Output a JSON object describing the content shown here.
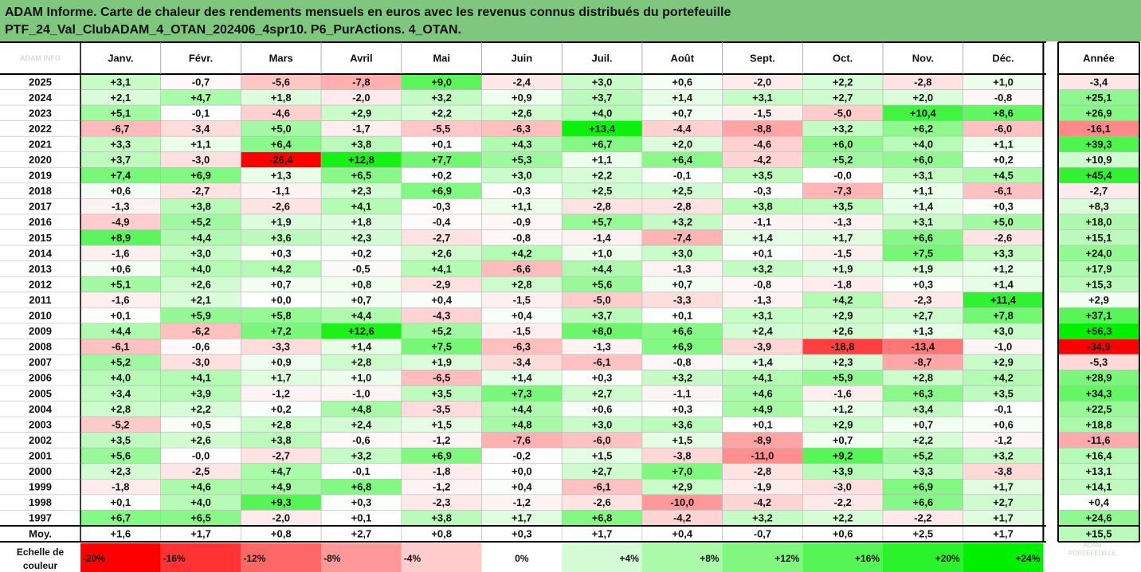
{
  "title": {
    "line1": "ADAM Informe. Carte de chaleur des rendements mensuels en euros avec les revenus connus distribués du portefeuille",
    "line2": "PTF_24_Val_ClubADAM_4_OTAN_202406_4spr10. P6_PurActions. 4_OTAN."
  },
  "corner_label": "ADAM INFO",
  "watermark": {
    "line1": "ADAM",
    "line2": "PORTEFEUILLE"
  },
  "colors": {
    "title_bg": "#7fc77f",
    "strong_negative": "#ff0000",
    "strong_positive": "#00f000"
  },
  "chart_data": {
    "type": "heatmap",
    "columns": [
      "Janv.",
      "Févr.",
      "Mars",
      "Avril",
      "Mai",
      "Juin",
      "Juil.",
      "Août",
      "Sept.",
      "Oct.",
      "Nov.",
      "Déc."
    ],
    "annual_label": "Année",
    "rows": [
      {
        "year": "2025",
        "values": [
          "+3,1",
          "-0,7",
          "-5,6",
          "-7,8",
          "+9,0",
          "-2,4",
          "+3,0",
          "+0,6",
          "-2,0",
          "+2,2",
          "-2,8",
          "+1,0"
        ],
        "annual": "-3,4"
      },
      {
        "year": "2024",
        "values": [
          "+2,1",
          "+4,7",
          "+1,8",
          "-2,0",
          "+3,2",
          "+0,9",
          "+3,7",
          "+1,4",
          "+3,1",
          "+2,7",
          "+2,0",
          "-0,8"
        ],
        "annual": "+25,1"
      },
      {
        "year": "2023",
        "values": [
          "+5,1",
          "-0,1",
          "-4,6",
          "+2,9",
          "+2,2",
          "+2,6",
          "+4,0",
          "+0,7",
          "-1,5",
          "-5,0",
          "+10,4",
          "+8,6"
        ],
        "annual": "+26,9"
      },
      {
        "year": "2022",
        "values": [
          "-6,7",
          "-3,4",
          "+5,0",
          "-1,7",
          "-5,5",
          "-6,3",
          "+13,4",
          "-4,4",
          "-8,8",
          "+3,2",
          "+6,2",
          "-6,0"
        ],
        "annual": "-16,1"
      },
      {
        "year": "2021",
        "values": [
          "+3,3",
          "+1,1",
          "+6,4",
          "+3,8",
          "+0,1",
          "+4,3",
          "+6,7",
          "+2,0",
          "-4,6",
          "+6,0",
          "+4,0",
          "+1,1"
        ],
        "annual": "+39,3"
      },
      {
        "year": "2020",
        "values": [
          "+3,7",
          "-3,0",
          "-26,4",
          "+12,8",
          "+7,7",
          "+5,3",
          "+1,1",
          "+6,4",
          "-4,2",
          "+5,2",
          "+6,0",
          "+0,2"
        ],
        "annual": "+10,9"
      },
      {
        "year": "2019",
        "values": [
          "+7,4",
          "+6,9",
          "+1,3",
          "+6,5",
          "+0,2",
          "+3,0",
          "+2,2",
          "-0,1",
          "+3,5",
          "-0,0",
          "+3,1",
          "+4,5"
        ],
        "annual": "+45,4"
      },
      {
        "year": "2018",
        "values": [
          "+0,6",
          "-2,7",
          "-1,1",
          "+2,3",
          "+6,9",
          "-0,3",
          "+2,5",
          "+2,5",
          "-0,3",
          "-7,3",
          "+1,1",
          "-6,1"
        ],
        "annual": "-2,7"
      },
      {
        "year": "2017",
        "values": [
          "-1,3",
          "+3,8",
          "-2,6",
          "+4,1",
          "-0,3",
          "+1,1",
          "-2,8",
          "-2,8",
          "+3,8",
          "+3,5",
          "+1,4",
          "+0,3"
        ],
        "annual": "+8,3"
      },
      {
        "year": "2016",
        "values": [
          "-4,9",
          "+5,2",
          "+1,9",
          "+1,8",
          "-0,4",
          "-0,9",
          "+5,7",
          "+3,2",
          "-1,1",
          "-1,3",
          "+3,1",
          "+5,0"
        ],
        "annual": "+18,0"
      },
      {
        "year": "2015",
        "values": [
          "+8,9",
          "+4,4",
          "+3,6",
          "+2,3",
          "-2,7",
          "-0,8",
          "-1,4",
          "-7,4",
          "+1,4",
          "+1,7",
          "+6,6",
          "-2,6"
        ],
        "annual": "+15,1"
      },
      {
        "year": "2014",
        "values": [
          "-1,6",
          "+3,0",
          "+0,3",
          "+0,2",
          "+2,6",
          "+4,2",
          "+1,0",
          "+3,0",
          "+0,1",
          "-1,5",
          "+7,5",
          "+3,3"
        ],
        "annual": "+24,0"
      },
      {
        "year": "2013",
        "values": [
          "+0,6",
          "+4,0",
          "+4,2",
          "-0,5",
          "+4,1",
          "-6,6",
          "+4,4",
          "-1,3",
          "+3,2",
          "+1,9",
          "+1,9",
          "+1,2"
        ],
        "annual": "+17,9"
      },
      {
        "year": "2012",
        "values": [
          "+5,1",
          "+2,6",
          "+0,7",
          "+0,8",
          "-2,9",
          "+2,8",
          "+5,6",
          "+0,7",
          "-0,8",
          "-1,8",
          "+0,3",
          "+1,4"
        ],
        "annual": "+15,3"
      },
      {
        "year": "2011",
        "values": [
          "-1,6",
          "+2,1",
          "+0,0",
          "+0,7",
          "+0,4",
          "-1,5",
          "-5,0",
          "-3,3",
          "-1,3",
          "+4,2",
          "-2,3",
          "+11,4"
        ],
        "annual": "+2,9"
      },
      {
        "year": "2010",
        "values": [
          "+0,1",
          "+5,9",
          "+5,8",
          "+4,4",
          "-4,3",
          "+0,4",
          "+3,7",
          "+0,1",
          "+3,1",
          "+2,9",
          "+2,7",
          "+7,8"
        ],
        "annual": "+37,1"
      },
      {
        "year": "2009",
        "values": [
          "+4,4",
          "-6,2",
          "+7,2",
          "+12,6",
          "+5,2",
          "-1,5",
          "+8,0",
          "+6,6",
          "+2,4",
          "+2,6",
          "+1,3",
          "+3,0"
        ],
        "annual": "+56,3"
      },
      {
        "year": "2008",
        "values": [
          "-6,1",
          "-0,6",
          "-3,3",
          "+1,4",
          "+7,5",
          "-6,3",
          "-1,3",
          "+6,9",
          "-3,9",
          "-18,8",
          "-13,4",
          "-1,0"
        ],
        "annual": "-34,9"
      },
      {
        "year": "2007",
        "values": [
          "+5,2",
          "-3,0",
          "+0,9",
          "+2,8",
          "+1,9",
          "-3,4",
          "-6,1",
          "-0,8",
          "+1,4",
          "+2,3",
          "-8,7",
          "+2,9"
        ],
        "annual": "-5,3"
      },
      {
        "year": "2006",
        "values": [
          "+4,0",
          "+4,1",
          "+1,7",
          "+1,0",
          "-6,5",
          "+1,4",
          "+0,3",
          "+3,2",
          "+4,1",
          "+5,9",
          "+2,8",
          "+4,2"
        ],
        "annual": "+28,9"
      },
      {
        "year": "2005",
        "values": [
          "+3,4",
          "+3,9",
          "-1,2",
          "-1,0",
          "+3,5",
          "+7,3",
          "+2,7",
          "-1,1",
          "+4,6",
          "-1,6",
          "+6,3",
          "+3,5"
        ],
        "annual": "+34,3"
      },
      {
        "year": "2004",
        "values": [
          "+2,8",
          "+2,2",
          "+0,2",
          "+4,8",
          "-3,5",
          "+4,4",
          "+0,6",
          "+0,3",
          "+4,9",
          "+1,2",
          "+3,4",
          "-0,1"
        ],
        "annual": "+22,5"
      },
      {
        "year": "2003",
        "values": [
          "-5,2",
          "+0,5",
          "+2,8",
          "+2,4",
          "+1,5",
          "+4,8",
          "+3,0",
          "+3,6",
          "+0,1",
          "+2,9",
          "+0,7",
          "+0,6"
        ],
        "annual": "+18,8"
      },
      {
        "year": "2002",
        "values": [
          "+3,5",
          "+2,6",
          "+3,8",
          "-0,6",
          "-1,2",
          "-7,6",
          "-6,0",
          "+1,5",
          "-8,9",
          "+0,7",
          "+2,2",
          "-1,2"
        ],
        "annual": "-11,6"
      },
      {
        "year": "2001",
        "values": [
          "+5,6",
          "-0,0",
          "-2,7",
          "+3,2",
          "+6,9",
          "-0,2",
          "+1,5",
          "-3,8",
          "-11,0",
          "+9,2",
          "+5,2",
          "+3,2"
        ],
        "annual": "+16,4"
      },
      {
        "year": "2000",
        "values": [
          "+2,3",
          "-2,5",
          "+4,7",
          "-0,1",
          "-1,8",
          "+0,0",
          "+2,7",
          "+7,0",
          "-2,8",
          "+3,9",
          "+3,3",
          "-3,8"
        ],
        "annual": "+13,1"
      },
      {
        "year": "1999",
        "values": [
          "-1,8",
          "+4,6",
          "+4,9",
          "+6,8",
          "-1,2",
          "+0,4",
          "-6,1",
          "+2,9",
          "-1,9",
          "-3,0",
          "+6,9",
          "+1,7"
        ],
        "annual": "+14,1"
      },
      {
        "year": "1998",
        "values": [
          "+0,1",
          "+4,0",
          "+9,3",
          "+0,3",
          "-2,3",
          "-1,2",
          "-2,6",
          "-10,0",
          "-4,2",
          "-2,2",
          "+6,6",
          "+2,7"
        ],
        "annual": "+0,4"
      },
      {
        "year": "1997",
        "values": [
          "+6,7",
          "+6,5",
          "-2,0",
          "+0,1",
          "+3,8",
          "+1,7",
          "+6,8",
          "-4,2",
          "+3,2",
          "+2,2",
          "-2,2",
          "+1,7"
        ],
        "annual": "+24,6"
      }
    ],
    "average": {
      "label": "Moy.",
      "values": [
        "+1,6",
        "+1,7",
        "+0,8",
        "+2,7",
        "+0,8",
        "+0,3",
        "+1,7",
        "+0,4",
        "-0,7",
        "+0,6",
        "+2,5",
        "+1,7"
      ],
      "annual": "+15,5"
    },
    "color_scale": {
      "label_line1": "Echelle de",
      "label_line2": "couleur",
      "stops": [
        "-20%",
        "-16%",
        "-12%",
        "-8%",
        "-4%",
        "0%",
        "+4%",
        "+8%",
        "+12%",
        "+16%",
        "+20%",
        "+24%"
      ]
    }
  }
}
